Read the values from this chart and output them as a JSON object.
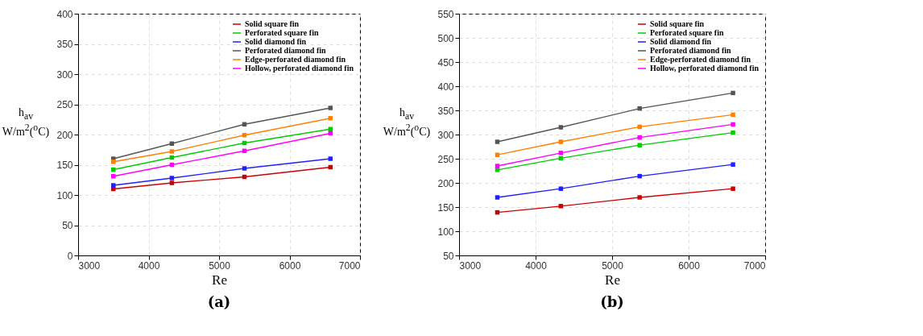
{
  "chart_data": [
    {
      "type": "line",
      "title": "(a)",
      "xlabel": "Re",
      "ylabel": "h$_{av}$ W/m$^{2}$($^{o}$C)",
      "x": [
        3500,
        4330,
        5360,
        6580
      ],
      "xlim": [
        3000,
        7000
      ],
      "xticks": [
        3000,
        4000,
        5000,
        6000,
        7000
      ],
      "ylim": [
        0,
        400
      ],
      "yticks": [
        0,
        50,
        100,
        150,
        200,
        250,
        300,
        350,
        400
      ],
      "grid": true,
      "legend": "top right",
      "marker": "square",
      "series": [
        {
          "name": "Solid square fin",
          "color": "#cc0000",
          "values": [
            110,
            120,
            130,
            146
          ]
        },
        {
          "name": "Perforated square fin",
          "color": "#00cc00",
          "values": [
            142,
            162,
            186,
            209
          ]
        },
        {
          "name": "Solid diamond fin",
          "color": "#2020ff",
          "values": [
            116,
            128,
            144,
            160
          ]
        },
        {
          "name": "Perforated diamond fin",
          "color": "#555555",
          "values": [
            160,
            185,
            217,
            244
          ]
        },
        {
          "name": "Edge-perforated diamond fin",
          "color": "#ff8000",
          "values": [
            155,
            172,
            199,
            227
          ]
        },
        {
          "name": "Hollow, perforated diamond fin",
          "color": "#ff00ff",
          "values": [
            131,
            150,
            173,
            202
          ]
        }
      ]
    },
    {
      "type": "line",
      "title": "(b)",
      "xlabel": "Re",
      "ylabel": "h$_{av}$ W/m$^{2}$($^{o}$C)",
      "x": [
        3500,
        4330,
        5360,
        6580
      ],
      "xlim": [
        3000,
        7000
      ],
      "xticks": [
        3000,
        4000,
        5000,
        6000,
        7000
      ],
      "ylim": [
        50,
        550
      ],
      "yticks": [
        50,
        100,
        150,
        200,
        250,
        300,
        350,
        400,
        450,
        500,
        550
      ],
      "grid": true,
      "legend": "top right",
      "marker": "square",
      "series": [
        {
          "name": "Solid square fin",
          "color": "#cc0000",
          "values": [
            139,
            152,
            170,
            188
          ]
        },
        {
          "name": "Perforated square fin",
          "color": "#00cc00",
          "values": [
            227,
            251,
            278,
            304
          ]
        },
        {
          "name": "Solid diamond fin",
          "color": "#2020ff",
          "values": [
            170,
            188,
            214,
            238
          ]
        },
        {
          "name": "Perforated diamond fin",
          "color": "#555555",
          "values": [
            285,
            315,
            354,
            386
          ]
        },
        {
          "name": "Edge-perforated diamond fin",
          "color": "#ff8000",
          "values": [
            258,
            285,
            316,
            341
          ]
        },
        {
          "name": "Hollow, perforated diamond fin",
          "color": "#ff00ff",
          "values": [
            235,
            262,
            294,
            321
          ]
        }
      ]
    }
  ]
}
